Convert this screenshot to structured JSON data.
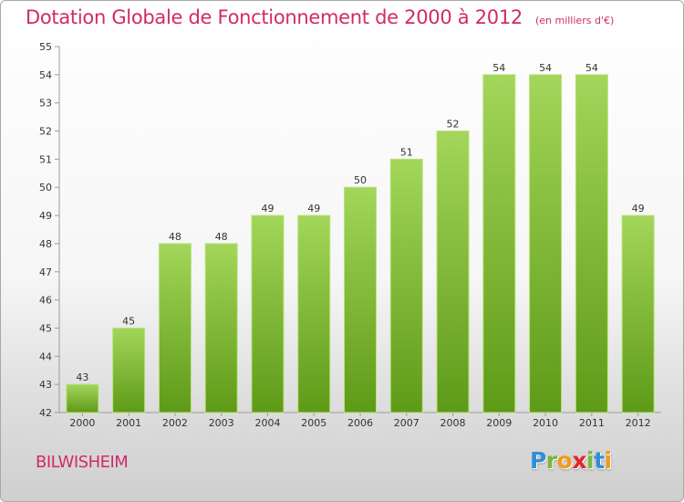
{
  "chart_data": {
    "type": "bar",
    "title": "Dotation Globale de Fonctionnement de 2000 à 2012",
    "subtitle": "(en milliers d'€)",
    "categories": [
      "2000",
      "2001",
      "2002",
      "2003",
      "2004",
      "2005",
      "2006",
      "2007",
      "2008",
      "2009",
      "2010",
      "2011",
      "2012"
    ],
    "values": [
      43,
      45,
      48,
      48,
      49,
      49,
      50,
      51,
      52,
      54,
      54,
      54,
      49
    ],
    "ylim": [
      42,
      55
    ],
    "yticks": [
      42,
      43,
      44,
      45,
      46,
      47,
      48,
      49,
      50,
      51,
      52,
      53,
      54,
      55
    ],
    "grid": false,
    "legend": "none",
    "bar_color_top": "#a3d65a",
    "bar_color_bottom": "#5e9a17"
  },
  "footer": {
    "commune": "BILWISHEIM",
    "logo_letters": [
      {
        "ch": "P",
        "color": "#2f8fd6"
      },
      {
        "ch": "r",
        "color": "#7ab83a"
      },
      {
        "ch": "o",
        "color": "#f29a1e"
      },
      {
        "ch": "x",
        "color": "#e2262a"
      },
      {
        "ch": "i",
        "color": "#7ab83a"
      },
      {
        "ch": "t",
        "color": "#2f8fd6"
      },
      {
        "ch": "i",
        "color": "#f29a1e"
      }
    ]
  }
}
